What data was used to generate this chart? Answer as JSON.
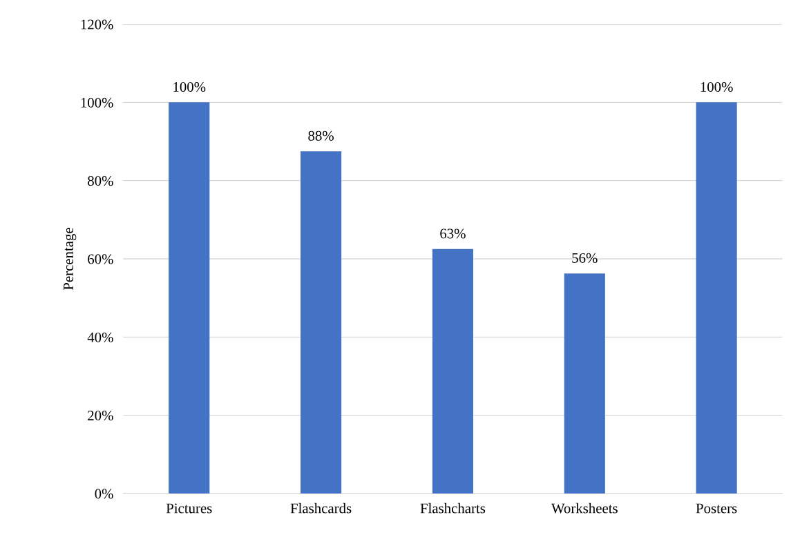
{
  "chart_data": {
    "type": "bar",
    "ylabel": "Percentage",
    "categories": [
      "Pictures",
      "Flashcards",
      "Flashcharts",
      "Worksheets",
      "Posters"
    ],
    "values": [
      100,
      87.5,
      62.5,
      56.25,
      100
    ],
    "value_labels": [
      "100%",
      "88%",
      "63%",
      "56%",
      "100%"
    ],
    "color": "#4472c4",
    "ylim": [
      0,
      120
    ],
    "yticks": [
      {
        "value": 0,
        "label": "0%"
      },
      {
        "value": 20,
        "label": "20%"
      },
      {
        "value": 40,
        "label": "40%"
      },
      {
        "value": 60,
        "label": "60%"
      },
      {
        "value": 80,
        "label": "80%"
      },
      {
        "value": 100,
        "label": "100%"
      },
      {
        "value": 120,
        "label": "120%"
      }
    ],
    "grid": "y"
  }
}
